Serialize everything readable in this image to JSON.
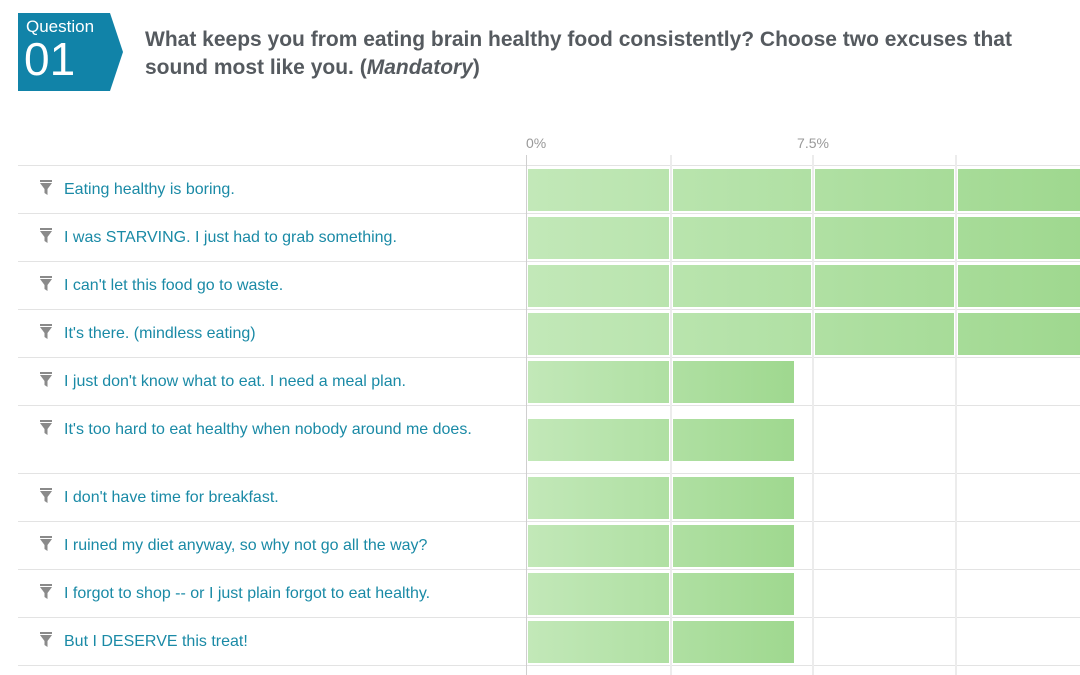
{
  "question": {
    "badge_label": "Question",
    "number": "01",
    "text": "What keeps you from eating brain healthy food consistently? Choose two excuses that sound most like you. (",
    "mandatory": "Mandatory",
    "text_end": ")"
  },
  "colors": {
    "badge": "#1183a8",
    "option_text": "#1a8aa6",
    "bar_light": "#c2e8b8",
    "bar_dark": "#9fd88f"
  },
  "axis": {
    "ticks": [
      "0%",
      "7.5%"
    ]
  },
  "chart_data": {
    "type": "bar",
    "orientation": "horizontal",
    "categories": [
      "Eating healthy is boring.",
      "I was STARVING. I just had to grab something.",
      "I can't let this food go to waste.",
      "It's there. (mindless eating)",
      "I just don't know what to eat. I need a meal plan.",
      "It's too hard to eat healthy when nobody around me does.",
      "I don't have time for breakfast.",
      "I ruined my diet anyway, so why not go all the way?",
      "I forgot to shop -- or I just plain forgot to eat healthy.",
      "But I DESERVE this treat!"
    ],
    "values": [
      15,
      15,
      15,
      15,
      7,
      7,
      7,
      7,
      7,
      7
    ],
    "unit": "%",
    "xlim": [
      0,
      15
    ],
    "tick_values": [
      0,
      7.5
    ],
    "grid": true,
    "icon": "filter-icon"
  }
}
